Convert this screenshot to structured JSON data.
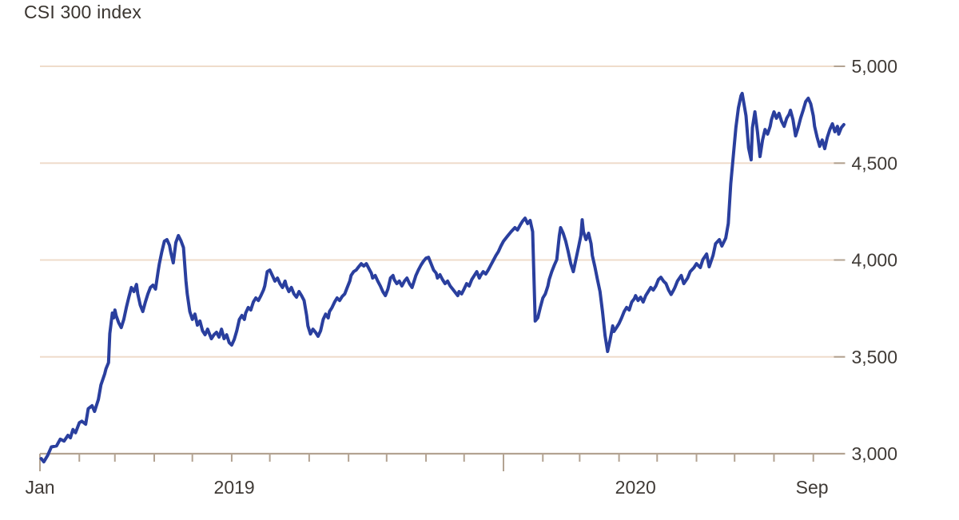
{
  "title": "CSI 300 index",
  "colors": {
    "line": "#2a3f9e",
    "grid": "#efdccb",
    "axis": "#b3a392",
    "text": "#3f3a36",
    "background": "#ffffff"
  },
  "chart_data": {
    "type": "line",
    "title": "CSI 300 index",
    "series_name": "CSI 300 index",
    "x_unit": "days since Jan 1 2019",
    "xlim_days": [
      0,
      634
    ],
    "ylim": [
      3000,
      5000
    ],
    "y_ticks": [
      3000,
      3500,
      4000,
      4500,
      5000
    ],
    "y_tick_labels": [
      "3,000",
      "3,500",
      "4,000",
      "4,500",
      "5,000"
    ],
    "grid": true,
    "legend_position": "none",
    "x_axis": {
      "month_tick_days": [
        31,
        59,
        90,
        120,
        151,
        181,
        212,
        243,
        273,
        304,
        334,
        396,
        425,
        456,
        486,
        517,
        547,
        578,
        609
      ],
      "year_tick_days": [
        0,
        365
      ],
      "labels": [
        {
          "text": "Jan",
          "day": 0
        },
        {
          "text": "2019",
          "day": 153
        },
        {
          "text": "2020",
          "day": 469
        },
        {
          "text": "Sep",
          "day": 608
        }
      ]
    },
    "points": [
      [
        1,
        2975
      ],
      [
        3,
        2958
      ],
      [
        6,
        2990
      ],
      [
        9,
        3035
      ],
      [
        13,
        3040
      ],
      [
        16,
        3075
      ],
      [
        19,
        3065
      ],
      [
        22,
        3095
      ],
      [
        24,
        3082
      ],
      [
        26,
        3125
      ],
      [
        28,
        3108
      ],
      [
        31,
        3160
      ],
      [
        33,
        3168
      ],
      [
        36,
        3152
      ],
      [
        38,
        3232
      ],
      [
        41,
        3248
      ],
      [
        43,
        3218
      ],
      [
        46,
        3280
      ],
      [
        48,
        3355
      ],
      [
        51,
        3412
      ],
      [
        52,
        3438
      ],
      [
        54,
        3470
      ],
      [
        55,
        3620
      ],
      [
        57,
        3726
      ],
      [
        58,
        3701
      ],
      [
        59,
        3742
      ],
      [
        60,
        3713
      ],
      [
        62,
        3676
      ],
      [
        64,
        3651
      ],
      [
        66,
        3693
      ],
      [
        68,
        3755
      ],
      [
        70,
        3808
      ],
      [
        72,
        3858
      ],
      [
        74,
        3837
      ],
      [
        76,
        3874
      ],
      [
        77,
        3825
      ],
      [
        79,
        3767
      ],
      [
        81,
        3734
      ],
      [
        83,
        3783
      ],
      [
        85,
        3825
      ],
      [
        87,
        3858
      ],
      [
        89,
        3870
      ],
      [
        91,
        3850
      ],
      [
        93,
        3940
      ],
      [
        94,
        3981
      ],
      [
        96,
        4043
      ],
      [
        98,
        4097
      ],
      [
        100,
        4105
      ],
      [
        102,
        4076
      ],
      [
        103,
        4040
      ],
      [
        105,
        3985
      ],
      [
        107,
        4090
      ],
      [
        109,
        4126
      ],
      [
        111,
        4100
      ],
      [
        113,
        4064
      ],
      [
        115,
        3891
      ],
      [
        116,
        3825
      ],
      [
        118,
        3734
      ],
      [
        120,
        3693
      ],
      [
        122,
        3721
      ],
      [
        124,
        3664
      ],
      [
        126,
        3685
      ],
      [
        128,
        3635
      ],
      [
        130,
        3614
      ],
      [
        132,
        3643
      ],
      [
        133,
        3627
      ],
      [
        135,
        3594
      ],
      [
        137,
        3614
      ],
      [
        139,
        3627
      ],
      [
        141,
        3602
      ],
      [
        143,
        3643
      ],
      [
        145,
        3594
      ],
      [
        147,
        3614
      ],
      [
        149,
        3573
      ],
      [
        151,
        3561
      ],
      [
        153,
        3590
      ],
      [
        155,
        3635
      ],
      [
        157,
        3693
      ],
      [
        159,
        3714
      ],
      [
        161,
        3693
      ],
      [
        162,
        3726
      ],
      [
        164,
        3755
      ],
      [
        166,
        3742
      ],
      [
        168,
        3783
      ],
      [
        170,
        3804
      ],
      [
        172,
        3791
      ],
      [
        174,
        3816
      ],
      [
        176,
        3845
      ],
      [
        177,
        3866
      ],
      [
        179,
        3940
      ],
      [
        181,
        3948
      ],
      [
        183,
        3920
      ],
      [
        185,
        3891
      ],
      [
        187,
        3907
      ],
      [
        189,
        3878
      ],
      [
        191,
        3858
      ],
      [
        193,
        3891
      ],
      [
        194,
        3866
      ],
      [
        196,
        3837
      ],
      [
        198,
        3858
      ],
      [
        200,
        3825
      ],
      [
        202,
        3808
      ],
      [
        204,
        3837
      ],
      [
        206,
        3816
      ],
      [
        208,
        3791
      ],
      [
        210,
        3713
      ],
      [
        211,
        3660
      ],
      [
        213,
        3618
      ],
      [
        215,
        3643
      ],
      [
        217,
        3627
      ],
      [
        219,
        3606
      ],
      [
        221,
        3635
      ],
      [
        223,
        3693
      ],
      [
        225,
        3721
      ],
      [
        227,
        3701
      ],
      [
        228,
        3734
      ],
      [
        230,
        3755
      ],
      [
        232,
        3783
      ],
      [
        234,
        3804
      ],
      [
        236,
        3791
      ],
      [
        238,
        3812
      ],
      [
        240,
        3825
      ],
      [
        242,
        3858
      ],
      [
        244,
        3891
      ],
      [
        245,
        3920
      ],
      [
        247,
        3940
      ],
      [
        249,
        3948
      ],
      [
        251,
        3965
      ],
      [
        253,
        3981
      ],
      [
        255,
        3969
      ],
      [
        257,
        3981
      ],
      [
        259,
        3956
      ],
      [
        261,
        3932
      ],
      [
        262,
        3907
      ],
      [
        264,
        3920
      ],
      [
        266,
        3891
      ],
      [
        268,
        3866
      ],
      [
        270,
        3837
      ],
      [
        272,
        3816
      ],
      [
        274,
        3850
      ],
      [
        276,
        3907
      ],
      [
        278,
        3920
      ],
      [
        279,
        3899
      ],
      [
        281,
        3878
      ],
      [
        283,
        3891
      ],
      [
        285,
        3866
      ],
      [
        287,
        3891
      ],
      [
        289,
        3907
      ],
      [
        291,
        3878
      ],
      [
        293,
        3858
      ],
      [
        295,
        3899
      ],
      [
        296,
        3920
      ],
      [
        298,
        3948
      ],
      [
        300,
        3973
      ],
      [
        302,
        3994
      ],
      [
        304,
        4010
      ],
      [
        306,
        4014
      ],
      [
        308,
        3981
      ],
      [
        310,
        3948
      ],
      [
        312,
        3932
      ],
      [
        313,
        3907
      ],
      [
        315,
        3924
      ],
      [
        317,
        3899
      ],
      [
        319,
        3878
      ],
      [
        321,
        3891
      ],
      [
        323,
        3866
      ],
      [
        325,
        3850
      ],
      [
        327,
        3833
      ],
      [
        329,
        3816
      ],
      [
        330,
        3837
      ],
      [
        332,
        3825
      ],
      [
        334,
        3850
      ],
      [
        336,
        3878
      ],
      [
        338,
        3866
      ],
      [
        340,
        3899
      ],
      [
        342,
        3920
      ],
      [
        344,
        3940
      ],
      [
        346,
        3907
      ],
      [
        347,
        3920
      ],
      [
        349,
        3940
      ],
      [
        351,
        3928
      ],
      [
        353,
        3948
      ],
      [
        355,
        3973
      ],
      [
        357,
        3998
      ],
      [
        359,
        4023
      ],
      [
        361,
        4043
      ],
      [
        363,
        4072
      ],
      [
        365,
        4097
      ],
      [
        368,
        4122
      ],
      [
        371,
        4146
      ],
      [
        374,
        4167
      ],
      [
        376,
        4155
      ],
      [
        378,
        4179
      ],
      [
        380,
        4200
      ],
      [
        382,
        4216
      ],
      [
        384,
        4188
      ],
      [
        386,
        4204
      ],
      [
        388,
        4146
      ],
      [
        390,
        3685
      ],
      [
        392,
        3701
      ],
      [
        394,
        3755
      ],
      [
        396,
        3804
      ],
      [
        398,
        3825
      ],
      [
        400,
        3866
      ],
      [
        401,
        3899
      ],
      [
        403,
        3940
      ],
      [
        405,
        3973
      ],
      [
        407,
        4002
      ],
      [
        409,
        4126
      ],
      [
        410,
        4167
      ],
      [
        412,
        4138
      ],
      [
        414,
        4097
      ],
      [
        416,
        4043
      ],
      [
        418,
        3981
      ],
      [
        420,
        3940
      ],
      [
        422,
        4002
      ],
      [
        424,
        4064
      ],
      [
        426,
        4126
      ],
      [
        427,
        4208
      ],
      [
        428,
        4146
      ],
      [
        430,
        4105
      ],
      [
        432,
        4138
      ],
      [
        434,
        4084
      ],
      [
        435,
        4023
      ],
      [
        437,
        3965
      ],
      [
        439,
        3899
      ],
      [
        441,
        3837
      ],
      [
        443,
        3734
      ],
      [
        445,
        3610
      ],
      [
        447,
        3528
      ],
      [
        449,
        3590
      ],
      [
        451,
        3660
      ],
      [
        452,
        3631
      ],
      [
        454,
        3651
      ],
      [
        456,
        3672
      ],
      [
        458,
        3701
      ],
      [
        460,
        3734
      ],
      [
        462,
        3755
      ],
      [
        464,
        3742
      ],
      [
        466,
        3783
      ],
      [
        468,
        3800
      ],
      [
        469,
        3816
      ],
      [
        471,
        3791
      ],
      [
        473,
        3808
      ],
      [
        475,
        3783
      ],
      [
        477,
        3816
      ],
      [
        479,
        3837
      ],
      [
        481,
        3858
      ],
      [
        483,
        3845
      ],
      [
        485,
        3866
      ],
      [
        487,
        3899
      ],
      [
        489,
        3911
      ],
      [
        491,
        3891
      ],
      [
        493,
        3878
      ],
      [
        495,
        3845
      ],
      [
        497,
        3822
      ],
      [
        499,
        3845
      ],
      [
        500,
        3858
      ],
      [
        502,
        3891
      ],
      [
        505,
        3920
      ],
      [
        507,
        3878
      ],
      [
        510,
        3907
      ],
      [
        512,
        3940
      ],
      [
        515,
        3961
      ],
      [
        517,
        3981
      ],
      [
        520,
        3961
      ],
      [
        522,
        4002
      ],
      [
        525,
        4031
      ],
      [
        527,
        3965
      ],
      [
        530,
        4023
      ],
      [
        532,
        4084
      ],
      [
        535,
        4105
      ],
      [
        537,
        4072
      ],
      [
        540,
        4113
      ],
      [
        542,
        4188
      ],
      [
        544,
        4394
      ],
      [
        546,
        4538
      ],
      [
        548,
        4683
      ],
      [
        550,
        4786
      ],
      [
        552,
        4848
      ],
      [
        553,
        4860
      ],
      [
        556,
        4744
      ],
      [
        558,
        4579
      ],
      [
        560,
        4517
      ],
      [
        561,
        4683
      ],
      [
        563,
        4765
      ],
      [
        565,
        4662
      ],
      [
        567,
        4534
      ],
      [
        569,
        4620
      ],
      [
        571,
        4674
      ],
      [
        573,
        4650
      ],
      [
        575,
        4690
      ],
      [
        576,
        4724
      ],
      [
        578,
        4765
      ],
      [
        580,
        4732
      ],
      [
        582,
        4757
      ],
      [
        584,
        4716
      ],
      [
        586,
        4690
      ],
      [
        588,
        4732
      ],
      [
        590,
        4753
      ],
      [
        591,
        4773
      ],
      [
        593,
        4724
      ],
      [
        595,
        4641
      ],
      [
        597,
        4683
      ],
      [
        599,
        4732
      ],
      [
        601,
        4773
      ],
      [
        603,
        4818
      ],
      [
        605,
        4835
      ],
      [
        607,
        4806
      ],
      [
        609,
        4744
      ],
      [
        610,
        4690
      ],
      [
        612,
        4633
      ],
      [
        614,
        4587
      ],
      [
        616,
        4620
      ],
      [
        618,
        4575
      ],
      [
        620,
        4633
      ],
      [
        622,
        4674
      ],
      [
        624,
        4703
      ],
      [
        626,
        4662
      ],
      [
        628,
        4690
      ],
      [
        629,
        4650
      ],
      [
        631,
        4683
      ],
      [
        633,
        4699
      ]
    ]
  }
}
